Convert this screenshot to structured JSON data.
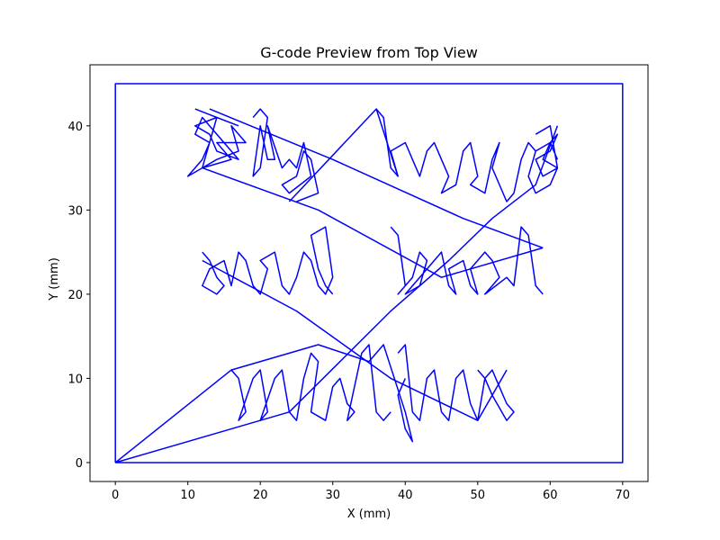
{
  "chart_data": {
    "type": "line",
    "title": "G-code Preview from Top View",
    "xlabel": "X (mm)",
    "ylabel": "Y (mm)",
    "xlim": [
      -3.5,
      73.5
    ],
    "ylim": [
      -2.25,
      47.25
    ],
    "xticks": [
      0,
      10,
      20,
      30,
      40,
      50,
      60,
      70
    ],
    "yticks": [
      0,
      10,
      20,
      30,
      40
    ],
    "grid": false,
    "line_color": "#0000ff",
    "series": [
      {
        "kind": "border",
        "x": [
          0,
          70,
          70,
          0,
          0
        ],
        "y": [
          0,
          0,
          45,
          45,
          0
        ]
      },
      {
        "kind": "text-toolpath",
        "text": "Big hugs",
        "x": [
          11,
          14,
          12,
          16,
          14,
          18,
          16,
          17,
          14,
          12,
          10,
          12,
          13,
          11,
          12,
          16,
          17,
          14,
          13,
          11,
          14,
          17
        ],
        "y": [
          42,
          41,
          35,
          36,
          38,
          38,
          40,
          37,
          36,
          35,
          34,
          36,
          38,
          39,
          41,
          37,
          36,
          37,
          39,
          40,
          41,
          40
        ]
      },
      {
        "kind": "text-toolpath",
        "text": "Big hugs",
        "x": [
          19,
          20,
          21,
          20,
          19,
          20,
          21,
          22,
          21,
          23,
          24,
          25,
          26,
          27,
          24,
          23,
          25,
          26,
          27,
          28,
          25
        ],
        "y": [
          41,
          42,
          41,
          35,
          34,
          40,
          36,
          36,
          40,
          35,
          36,
          35,
          38,
          34,
          32,
          33,
          34,
          37,
          36,
          32,
          31
        ]
      },
      {
        "kind": "text-toolpath",
        "text": "Big hugs",
        "x": [
          36,
          37,
          38,
          39,
          38,
          40,
          41,
          42,
          43,
          44,
          45,
          46,
          45,
          47,
          48,
          49,
          50,
          49,
          51,
          52,
          53,
          52,
          54,
          55,
          56,
          57,
          58
        ],
        "y": [
          42,
          41,
          35,
          34,
          37,
          38,
          36,
          34,
          37,
          38,
          36,
          34,
          32,
          33,
          37,
          38,
          34,
          33,
          32,
          36,
          38,
          35,
          31,
          32,
          36,
          38,
          37
        ]
      },
      {
        "kind": "text-toolpath",
        "text": "Big hugs",
        "x": [
          58,
          60,
          61,
          59,
          58,
          60,
          61,
          60,
          59,
          61,
          60,
          58,
          57,
          58,
          60,
          61
        ],
        "y": [
          39,
          40,
          35,
          34,
          36,
          37,
          39,
          38,
          36,
          35,
          33,
          32,
          34,
          37,
          38,
          36
        ]
      },
      {
        "kind": "text-toolpath",
        "text": "and best",
        "x": [
          12,
          13,
          14,
          15,
          14,
          12,
          13,
          15,
          16,
          17,
          18,
          19,
          20,
          21,
          20,
          22,
          23,
          24,
          25,
          26,
          27,
          28,
          29,
          30,
          29,
          27,
          28,
          29,
          30
        ],
        "y": [
          25,
          24,
          22,
          21,
          20,
          21,
          23,
          24,
          21,
          25,
          24,
          21,
          20,
          23,
          24,
          25,
          21,
          20,
          22,
          25,
          24,
          21,
          20,
          22,
          28,
          27,
          23,
          21,
          20
        ]
      },
      {
        "kind": "text-toolpath",
        "text": "and best",
        "x": [
          38,
          39,
          40,
          39,
          41,
          42,
          43,
          42,
          40,
          44,
          45,
          46,
          47,
          46,
          48,
          49,
          50,
          49,
          51,
          52,
          53,
          52,
          51,
          54,
          55,
          56,
          57,
          58,
          59
        ],
        "y": [
          28,
          27,
          21,
          20,
          22,
          25,
          24,
          21,
          20,
          24,
          25,
          21,
          20,
          23,
          24,
          21,
          20,
          23,
          25,
          24,
          22,
          21,
          20,
          22,
          21,
          28,
          27,
          21,
          20
        ]
      },
      {
        "kind": "text-toolpath",
        "text": "wishes",
        "x": [
          16,
          17,
          18,
          17,
          19,
          20,
          21,
          20,
          22,
          23,
          24,
          25,
          26,
          27,
          28,
          27,
          29,
          30,
          31,
          32,
          33,
          32,
          34,
          35,
          36,
          37,
          38
        ],
        "y": [
          11,
          10,
          6,
          5,
          10,
          11,
          6,
          5,
          10,
          11,
          6,
          5,
          10,
          13,
          12,
          6,
          5,
          9,
          10,
          7,
          6,
          5,
          13,
          14,
          6,
          5,
          6
        ]
      },
      {
        "kind": "text-toolpath",
        "text": "wishes",
        "x": [
          39,
          40,
          41,
          42,
          43,
          44,
          45,
          46,
          47,
          48,
          49,
          50,
          51,
          52,
          53,
          54,
          55,
          54,
          52,
          51,
          50
        ],
        "y": [
          13,
          14,
          6,
          5,
          10,
          11,
          6,
          5,
          10,
          11,
          7,
          5,
          10,
          11,
          9,
          7,
          6,
          5,
          8,
          10,
          11
        ]
      },
      {
        "kind": "travel",
        "x": [
          0,
          16,
          28,
          35,
          37,
          40,
          41,
          40,
          39,
          40
        ],
        "y": [
          0,
          11,
          14,
          12,
          14,
          6,
          2.5,
          4,
          8,
          10
        ]
      },
      {
        "kind": "travel",
        "x": [
          0,
          24,
          38,
          46,
          52,
          58,
          61
        ],
        "y": [
          0,
          6,
          18,
          24,
          29,
          33,
          40
        ]
      },
      {
        "kind": "travel",
        "x": [
          13,
          30,
          48,
          59
        ],
        "y": [
          42,
          36,
          29,
          25.5
        ]
      },
      {
        "kind": "travel",
        "x": [
          59,
          45,
          28,
          12
        ],
        "y": [
          25.5,
          22,
          30,
          35
        ]
      },
      {
        "kind": "travel",
        "x": [
          12,
          25,
          38,
          50,
          54
        ],
        "y": [
          24,
          18,
          10,
          5,
          11
        ]
      },
      {
        "kind": "travel",
        "x": [
          24,
          36,
          39
        ],
        "y": [
          31,
          42,
          34
        ]
      }
    ]
  }
}
